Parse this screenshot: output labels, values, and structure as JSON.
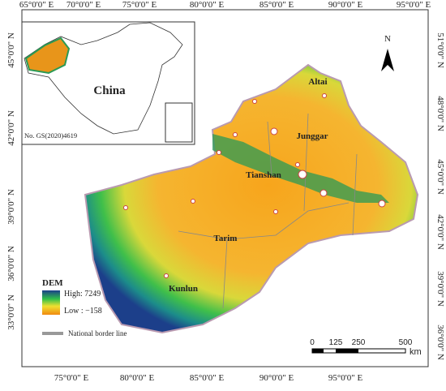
{
  "axes": {
    "top": [
      "65°0'0\" E",
      "70°0'0\" E",
      "75°0'0\" E",
      "80°0'0\" E",
      "85°0'0\" E",
      "90°0'0\" E",
      "95°0'0\" E"
    ],
    "bottom": [
      "75°0'0\" E",
      "80°0'0\" E",
      "85°0'0\" E",
      "90°0'0\" E",
      "95°0'0\" E"
    ],
    "left": [
      "45°0'0\" N",
      "42°0'0\" N",
      "39°0'0\" N",
      "36°0'0\" N",
      "33°0'0\" N"
    ],
    "right": [
      "51°0'0\" N",
      "48°0'0\" N",
      "45°0'0\" N",
      "42°0'0\" N",
      "39°0'0\" N",
      "36°0'0\" N"
    ]
  },
  "inset": {
    "label": "China",
    "approval": "No. GS(2020)4619"
  },
  "regions": [
    "Altai",
    "Junggar",
    "Tianshan",
    "Tarim",
    "Kunlun"
  ],
  "north": "N",
  "legend": {
    "title": "DEM",
    "high": "High: 7249",
    "low": "Low : −158",
    "border": "National border line"
  },
  "scale": {
    "ticks": [
      "0",
      "125",
      "250",
      "500"
    ],
    "unit": "km"
  }
}
